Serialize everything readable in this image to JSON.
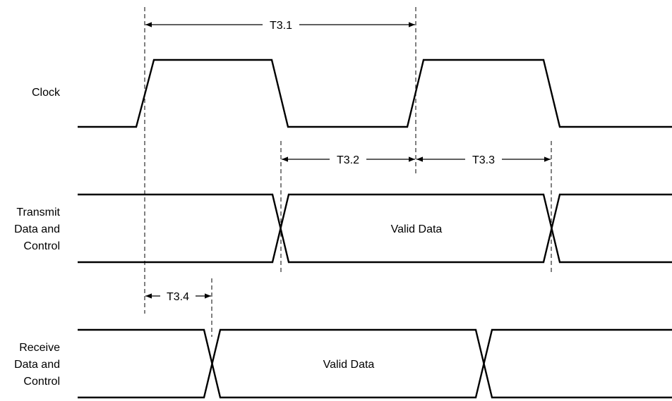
{
  "signals": {
    "clock": {
      "label": "Clock"
    },
    "transmit": {
      "label_lines": [
        "Transmit",
        "Data and",
        "Control"
      ],
      "data_label": "Valid Data"
    },
    "receive": {
      "label_lines": [
        "Receive",
        "Data and",
        "Control"
      ],
      "data_label": "Valid Data"
    }
  },
  "timings": {
    "t31": "T3.1",
    "t32": "T3.2",
    "t33": "T3.3",
    "t34": "T3.4"
  }
}
